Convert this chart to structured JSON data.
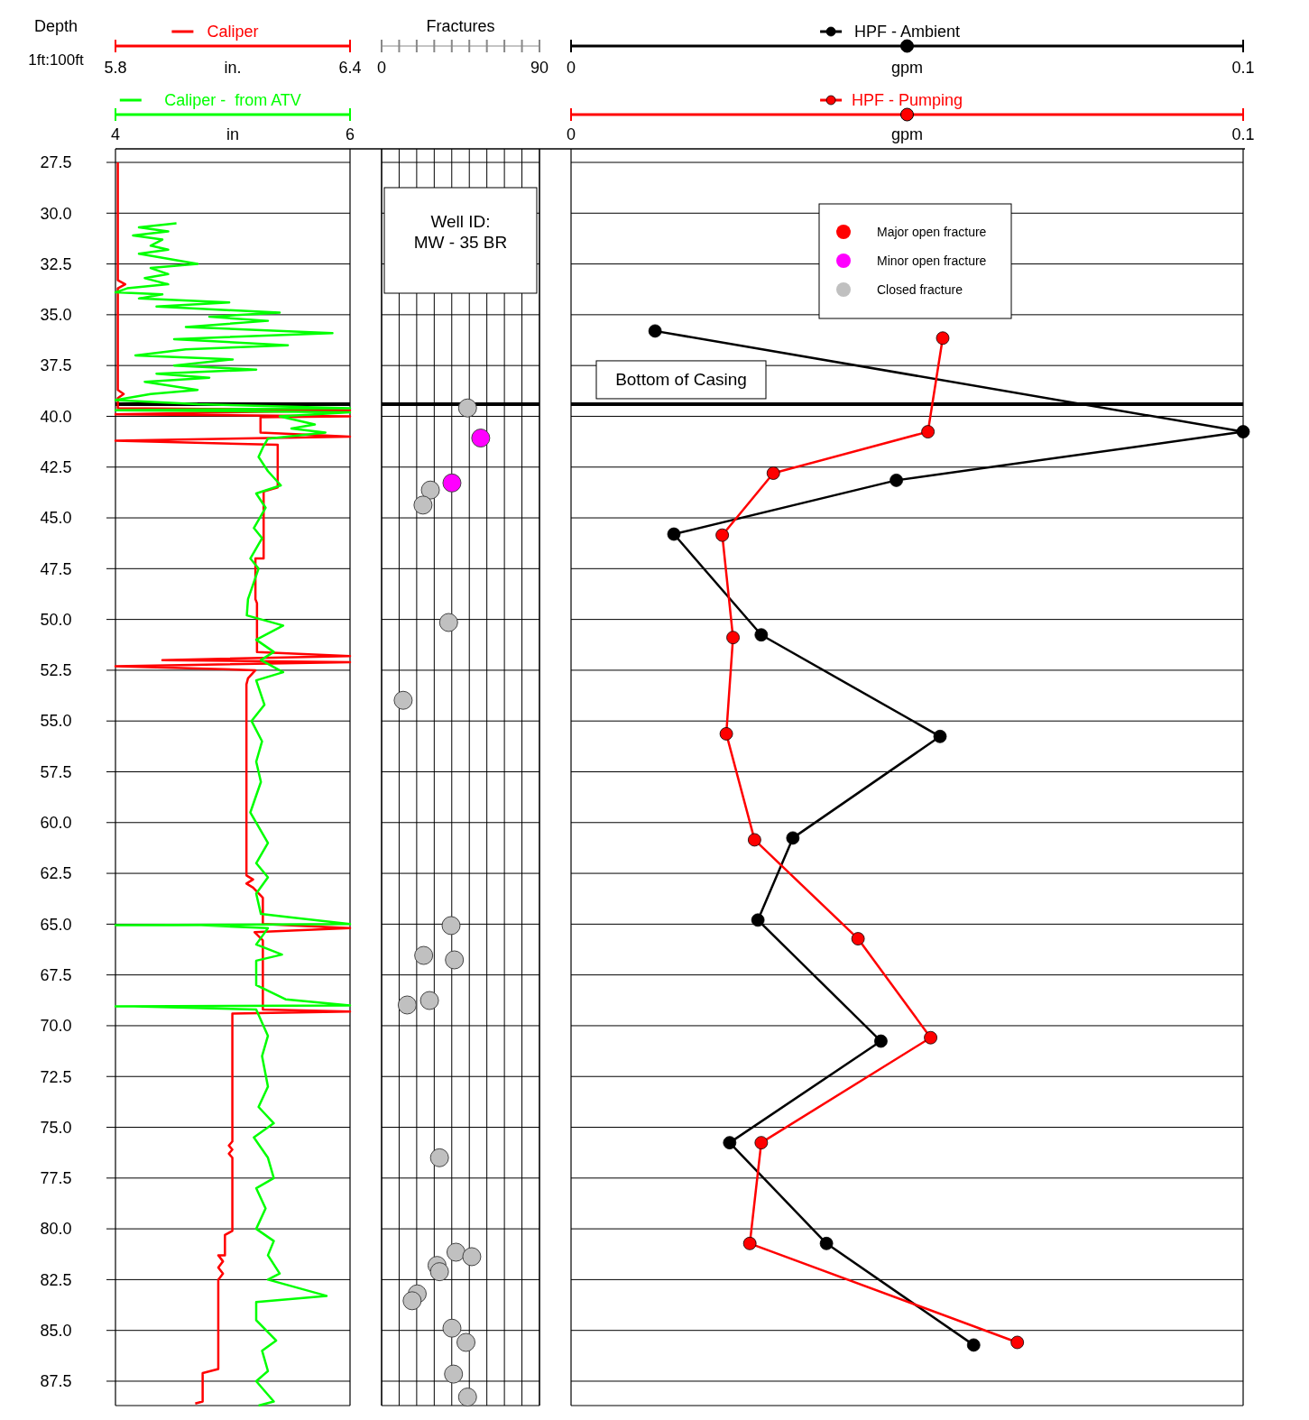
{
  "chart_data": [
    {
      "type": "line",
      "orientation": "horizontal",
      "ylabel": "Depth",
      "xlabel": "in.",
      "x2label": "in",
      "annotations": [
        "1ft:100ft"
      ],
      "xlim": [
        5.8,
        6.4
      ],
      "xticks": [
        5.8,
        6.4
      ],
      "x2lim": [
        4,
        6
      ],
      "x2ticks": [
        4,
        6
      ],
      "ylim": [
        88.7,
        27.5
      ],
      "yticks": [
        {
          "value": 27.5,
          "label": "27.5"
        },
        {
          "value": 30,
          "label": "30.0"
        },
        {
          "value": 32.5,
          "label": "32.5"
        },
        {
          "value": 35,
          "label": "35.0"
        },
        {
          "value": 37.5,
          "label": "37.5"
        },
        {
          "value": 40,
          "label": "40.0"
        },
        {
          "value": 42.5,
          "label": "42.5"
        },
        {
          "value": 45,
          "label": "45.0"
        },
        {
          "value": 47.5,
          "label": "47.5"
        },
        {
          "value": 50,
          "label": "50.0"
        },
        {
          "value": 52.5,
          "label": "52.5"
        },
        {
          "value": 55,
          "label": "55.0"
        },
        {
          "value": 57.5,
          "label": "57.5"
        },
        {
          "value": 60,
          "label": "60.0"
        },
        {
          "value": 62.5,
          "label": "62.5"
        },
        {
          "value": 65,
          "label": "65.0"
        },
        {
          "value": 67.5,
          "label": "67.5"
        },
        {
          "value": 70,
          "label": "70.0"
        },
        {
          "value": 72.5,
          "label": "72.5"
        },
        {
          "value": 75,
          "label": "75.0"
        },
        {
          "value": 77.5,
          "label": "77.5"
        },
        {
          "value": 80,
          "label": "80.0"
        },
        {
          "value": 82.5,
          "label": "82.5"
        },
        {
          "value": 85,
          "label": "85.0"
        },
        {
          "value": 87.5,
          "label": "87.5"
        }
      ],
      "grid": "y",
      "legend": "top",
      "marker": "none",
      "line_style": "solid",
      "ref_lines": [
        {
          "axis": "y",
          "value": 39.4,
          "color": "#000000"
        }
      ],
      "series": [
        {
          "name": "Caliper",
          "color": "#ff0000",
          "values": [
            5.806,
            5.806,
            5.825,
            5.806,
            5.806,
            5.821,
            5.806,
            5.806,
            6.4,
            5.8,
            6.4,
            6.171,
            6.171,
            6.4,
            5.8,
            6.215,
            6.215,
            6.179,
            6.179,
            6.158,
            6.158,
            6.162,
            6.162,
            6.4,
            5.92,
            6.4,
            5.8,
            6.158,
            6.139,
            6.135,
            6.135,
            6.152,
            6.135,
            6.152,
            6.177,
            6.177,
            6.4,
            6.156,
            6.177,
            6.177,
            6.4,
            6.099,
            6.099,
            6.09,
            6.099,
            6.09,
            6.099,
            6.099,
            6.08,
            6.08,
            6.063,
            6.075,
            6.063,
            6.075,
            6.063,
            6.063,
            6.023,
            6.023,
            6.004
          ],
          "x": [
            27.5,
            33.3,
            33.5,
            33.7,
            38.7,
            38.9,
            39.1,
            39.6,
            39.7,
            39.9,
            40.0,
            40.05,
            40.8,
            41.0,
            41.2,
            41.4,
            43.5,
            43.7,
            47.0,
            47.0,
            49.0,
            49.2,
            51.6,
            51.8,
            52.0,
            52.1,
            52.3,
            52.5,
            52.9,
            53.2,
            62.6,
            62.8,
            63.0,
            63.2,
            63.7,
            65.0,
            65.2,
            65.4,
            65.8,
            69.2,
            69.3,
            69.4,
            75.7,
            75.9,
            76.1,
            76.3,
            76.5,
            80.1,
            80.3,
            81.3,
            81.3,
            81.6,
            81.9,
            82.2,
            82.5,
            86.9,
            87.1,
            88.5,
            88.6
          ]
        },
        {
          "name": "Caliper -  from ATV",
          "color": "#00ff00",
          "axis": "x2",
          "values": [
            4.52,
            4.2,
            4.45,
            4.15,
            4.4,
            4.3,
            4.45,
            4.2,
            4.5,
            4.7,
            4.3,
            4.45,
            4.25,
            4.45,
            4.1,
            4.0,
            4.4,
            4.2,
            4.97,
            4.35,
            5.4,
            4.8,
            5.3,
            4.6,
            5.85,
            4.5,
            5.47,
            4.6,
            4.17,
            5.0,
            4.5,
            5.2,
            4.35,
            4.8,
            4.25,
            4.7,
            4.3,
            4.0,
            4.7,
            6.0,
            4.0,
            6.0,
            5.4,
            5.7,
            5.5,
            5.79,
            5.3,
            5.26,
            5.22,
            5.3,
            5.41,
            5.2,
            5.28,
            5.18,
            5.25,
            5.15,
            5.22,
            5.13,
            5.12,
            5.43,
            5.2,
            5.35,
            5.24,
            5.43,
            5.2,
            5.27,
            5.16,
            5.25,
            5.2,
            5.24,
            5.15,
            5.3,
            5.2,
            5.3,
            5.2,
            5.24,
            6.0,
            4.0,
            4.73,
            5.3,
            5.2,
            5.42,
            5.2,
            5.2,
            5.45,
            6.0,
            4.0,
            4.16,
            5.2,
            5.3,
            5.25,
            5.3,
            5.22,
            5.35,
            5.18,
            5.3,
            5.35,
            5.2,
            5.28,
            5.2,
            5.35,
            5.3,
            5.4,
            5.3,
            5.8,
            5.2,
            5.2,
            5.37,
            5.25,
            5.3,
            5.2,
            5.35,
            5.22
          ],
          "x": [
            30.5,
            30.7,
            30.9,
            31.1,
            31.3,
            31.6,
            31.8,
            32.0,
            32.3,
            32.5,
            32.7,
            33.0,
            33.2,
            33.5,
            33.7,
            33.9,
            34.0,
            34.2,
            34.4,
            34.6,
            34.9,
            35.1,
            35.3,
            35.6,
            35.9,
            36.2,
            36.5,
            36.7,
            37.0,
            37.2,
            37.5,
            37.7,
            37.9,
            38.1,
            38.3,
            38.7,
            38.9,
            39.2,
            39.4,
            39.6,
            39.7,
            39.8,
            40.0,
            40.4,
            40.6,
            40.8,
            41.1,
            41.5,
            42.0,
            42.7,
            43.4,
            43.8,
            44.5,
            45.5,
            46.0,
            47.0,
            47.5,
            49.0,
            49.8,
            50.3,
            51.0,
            51.6,
            52.0,
            52.6,
            53.0,
            54.2,
            55.0,
            56.0,
            57.0,
            58.0,
            59.5,
            61.0,
            62.0,
            62.7,
            63.5,
            64.5,
            65.0,
            65.05,
            65.05,
            65.2,
            66.0,
            66.5,
            66.8,
            68.0,
            68.7,
            69.0,
            69.05,
            69.05,
            69.2,
            70.5,
            71.5,
            73.0,
            74.0,
            74.8,
            75.5,
            76.5,
            77.5,
            78.0,
            79.0,
            80.0,
            80.6,
            81.3,
            82.2,
            82.5,
            83.3,
            83.6,
            84.5,
            85.5,
            86.0,
            87.0,
            87.5,
            88.5,
            88.7
          ]
        }
      ]
    },
    {
      "type": "scatter",
      "title": "Fractures",
      "annotations": [
        "Well ID:\nMW - 35 BR"
      ],
      "xlim": [
        0,
        90
      ],
      "xticks": [
        0,
        {
          "value": 10,
          "label": null
        },
        {
          "value": 20,
          "label": null
        },
        {
          "value": 30,
          "label": null
        },
        {
          "value": 40,
          "label": null
        },
        {
          "value": 50,
          "label": null
        },
        {
          "value": 60,
          "label": null
        },
        {
          "value": 70,
          "label": null
        },
        {
          "value": 80,
          "label": null
        },
        90
      ],
      "ylim": [
        88.7,
        27.5
      ],
      "yticks": [
        27.5,
        30,
        32.5,
        35,
        37.5,
        40,
        42.5,
        45,
        47.5,
        50,
        52.5,
        55,
        57.5,
        60,
        62.5,
        65,
        67.5,
        70,
        72.5,
        75,
        77.5,
        80,
        82.5,
        85,
        87.5
      ],
      "tick_labels": "x",
      "grid": true,
      "legend": "right",
      "marker": "circle",
      "ref_lines": [
        {
          "axis": "y",
          "value": 39.4,
          "color": "#000000"
        }
      ],
      "series": [
        {
          "name": "Major open fracture",
          "color": "#ff0000"
        },
        {
          "name": "Minor open fracture",
          "color": "#ff00ff",
          "x": [
            56.5,
            40.1
          ],
          "values": [
            41.07,
            43.28
          ]
        },
        {
          "name": "Closed fracture",
          "color": "#c0c0c0",
          "x": [
            49.0,
            27.8,
            23.6,
            38.2,
            12.3,
            39.6,
            24.0,
            41.5,
            27.3,
            14.6,
            33.0,
            42.4,
            51.4,
            31.6,
            33.0,
            20.3,
            17.4,
            40.1,
            48.1,
            41.0,
            49.0
          ],
          "values": [
            39.59,
            43.63,
            44.37,
            50.15,
            53.98,
            65.07,
            66.54,
            66.76,
            68.76,
            68.98,
            76.5,
            81.15,
            81.37,
            81.8,
            82.11,
            83.2,
            83.54,
            84.89,
            85.59,
            87.15,
            88.28
          ]
        }
      ]
    },
    {
      "type": "line",
      "orientation": "horizontal",
      "xlabel": "gpm",
      "x2label": "gpm",
      "xlim": [
        0,
        0.1
      ],
      "xticks": [
        0,
        0.1
      ],
      "x2lim": [
        0,
        0.1
      ],
      "x2ticks": [
        0,
        0.1
      ],
      "ylim": [
        88.7,
        27.5
      ],
      "yticks": [
        27.5,
        30,
        32.5,
        35,
        37.5,
        40,
        42.5,
        45,
        47.5,
        50,
        52.5,
        55,
        57.5,
        60,
        62.5,
        65,
        67.5,
        70,
        72.5,
        75,
        77.5,
        80,
        82.5,
        85,
        87.5
      ],
      "tick_labels": "x",
      "grid": "y",
      "legend": "top",
      "marker": "circle",
      "line_style": "solid",
      "ref_lines": [
        {
          "axis": "y",
          "value": 39.4,
          "label": "Bottom of Casing",
          "color": "#000000"
        }
      ],
      "series": [
        {
          "name": "HPF - Ambient",
          "color": "#000000",
          "values": [
            0.0125,
            0.1,
            0.0484,
            0.0153,
            0.0283,
            0.0549,
            0.033,
            0.0278,
            0.0461,
            0.0236,
            0.038,
            0.0599
          ],
          "x": [
            35.8,
            40.76,
            43.15,
            45.8,
            50.76,
            55.76,
            60.76,
            64.8,
            70.76,
            75.76,
            80.72,
            85.72
          ]
        },
        {
          "name": "HPF - Pumping",
          "color": "#ff0000",
          "axis": "x2",
          "values": [
            0.0553,
            0.0531,
            0.0301,
            0.0225,
            0.0241,
            0.0231,
            0.0273,
            0.0427,
            0.0535,
            0.0283,
            0.0266,
            0.0664
          ],
          "x": [
            36.15,
            40.76,
            42.8,
            45.85,
            50.89,
            55.63,
            60.85,
            65.72,
            70.59,
            75.76,
            80.72,
            85.59
          ]
        }
      ]
    }
  ]
}
